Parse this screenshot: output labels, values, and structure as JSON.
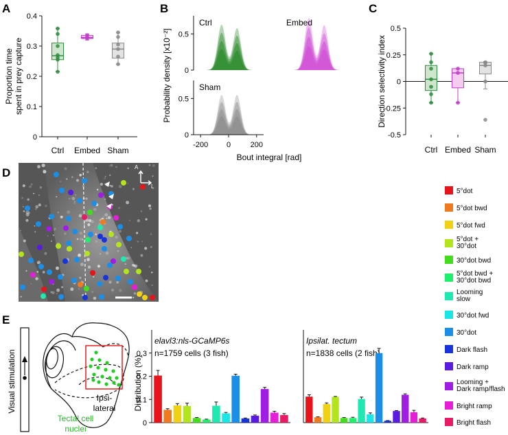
{
  "panels": {
    "A": "A",
    "B": "B",
    "C": "C",
    "D": "D",
    "E": "E"
  },
  "legend": [
    {
      "label": "5°dot",
      "color": "#e8141b"
    },
    {
      "label": "5°dot bwd",
      "color": "#f07a1e"
    },
    {
      "label": "5°dot fwd",
      "color": "#f1d113"
    },
    {
      "label": "5°dot +\n30°dot",
      "color": "#b3e51c"
    },
    {
      "label": "30°dot bwd",
      "color": "#44dd1e"
    },
    {
      "label": "5°dot bwd +\n30°dot bwd",
      "color": "#1ef06b"
    },
    {
      "label": "Looming\nslow",
      "color": "#1fe8b0"
    },
    {
      "label": "30°dot fwd",
      "color": "#1be6e6"
    },
    {
      "label": "30°dot",
      "color": "#1b8fe8"
    },
    {
      "label": "Dark flash",
      "color": "#1934d8"
    },
    {
      "label": "Dark ramp",
      "color": "#5a1ce0"
    },
    {
      "label": "Looming +\nDark ramp/flash",
      "color": "#a01de4"
    },
    {
      "label": "Bright ramp",
      "color": "#e51fd6"
    },
    {
      "label": "Bright flash",
      "color": "#e81b66"
    }
  ],
  "panel_d": {
    "scale_a": "A",
    "scale_l": "L"
  },
  "panel_e": {
    "stim_label": "Visual stimulation",
    "ipsi_label": "Ipsi-\nlateral",
    "tectal_label": "Tectal cell\nnuclei"
  },
  "chart_data": [
    {
      "id": "A",
      "type": "box",
      "categories": [
        "Ctrl",
        "Embed",
        "Sham"
      ],
      "ylabel": "Proportion time\nspent in prey capture",
      "ylim": [
        0,
        0.4
      ],
      "yticks": [
        "0",
        "0.1",
        "0.2",
        "0.3",
        "0.4"
      ],
      "colors": [
        "#2e8b3e",
        "#c03cc8",
        "#888888"
      ],
      "fills": [
        "#cde6cc",
        "#f3ccef",
        "#e3e3e3"
      ],
      "boxes": [
        {
          "min": 0.215,
          "q1": 0.255,
          "median": 0.268,
          "q3": 0.31,
          "max": 0.358,
          "points": [
            0.215,
            0.255,
            0.262,
            0.27,
            0.3,
            0.34,
            0.358
          ]
        },
        {
          "min": 0.32,
          "q1": 0.325,
          "median": 0.328,
          "q3": 0.335,
          "max": 0.34,
          "points": [
            0.325,
            0.33,
            0.336
          ]
        },
        {
          "min": 0.24,
          "q1": 0.26,
          "median": 0.29,
          "q3": 0.31,
          "max": 0.345,
          "points": [
            0.24,
            0.265,
            0.29,
            0.305,
            0.33,
            0.345
          ]
        }
      ]
    },
    {
      "id": "B",
      "type": "area",
      "ylabel": "Probability density [x10⁻²]",
      "xlabel": "Bout integral [rad]",
      "xlim": [
        -250,
        250
      ],
      "xticks": [
        "-200",
        "0",
        "200"
      ],
      "ylim": [
        0,
        0.75
      ],
      "yticks": [
        "0",
        "0.5"
      ],
      "subplots": [
        {
          "name": "Ctrl",
          "color": "#2b8a2b",
          "peak_left": 0.63,
          "peak_right": 0.58
        },
        {
          "name": "Embed",
          "color": "#d04fd6",
          "peak_left": 0.72,
          "peak_right": 0.62
        },
        {
          "name": "Sham",
          "color": "#8c8c8c",
          "peak_left": 0.55,
          "peak_right": 0.55
        }
      ]
    },
    {
      "id": "C",
      "type": "box",
      "categories": [
        "Ctrl",
        "Embed",
        "Sham"
      ],
      "ylabel": "Direction selectivity index",
      "ylim": [
        -0.5,
        0.5
      ],
      "yticks": [
        "0.5",
        "0.25",
        "0",
        "-0.25",
        "-0.5"
      ],
      "colors": [
        "#2e8b3e",
        "#c03cc8",
        "#888888"
      ],
      "fills": [
        "#cde6cc",
        "#f3ccef",
        "#e3e3e3"
      ],
      "boxes": [
        {
          "min": -0.2,
          "q1": -0.085,
          "median": 0.02,
          "q3": 0.15,
          "max": 0.26,
          "points": [
            -0.2,
            -0.12,
            -0.05,
            0.02,
            0.12,
            0.18,
            0.26
          ]
        },
        {
          "min": -0.2,
          "q1": -0.06,
          "median": 0.08,
          "q3": 0.12,
          "max": 0.12,
          "points": [
            -0.2,
            0.08,
            0.12
          ]
        },
        {
          "min": -0.07,
          "q1": 0.07,
          "median": 0.15,
          "q3": 0.18,
          "max": 0.185,
          "points": [
            -0.36,
            0.0,
            0.15,
            0.175,
            0.18
          ]
        }
      ]
    },
    {
      "id": "E1",
      "type": "bar",
      "title": "elavl3:nls-GCaMP6s",
      "subtitle": "n=1759 cells (3 fish)",
      "ylabel": "Distribution (%)",
      "ylim": [
        0,
        0.4
      ],
      "yticks": [
        "0",
        "0.1",
        "0.2",
        "0.3"
      ],
      "values": [
        0.203,
        0.055,
        0.074,
        0.072,
        0.02,
        0.013,
        0.073,
        0.04,
        0.202,
        0.018,
        0.03,
        0.145,
        0.043,
        0.033
      ],
      "errors": [
        0.022,
        0.005,
        0.008,
        0.012,
        0.002,
        0.002,
        0.016,
        0.004,
        0.007,
        0.002,
        0.003,
        0.007,
        0.006,
        0.006
      ]
    },
    {
      "id": "E2",
      "type": "bar",
      "title": "Ipsilat. tectum",
      "subtitle": "n=1838 cells (2 fish)",
      "ylim": [
        0,
        0.4
      ],
      "yticks": [
        "0",
        "0.1",
        "0.2",
        "0.3"
      ],
      "values": [
        0.112,
        0.023,
        0.08,
        0.111,
        0.02,
        0.02,
        0.102,
        0.036,
        0.3,
        0.008,
        0.05,
        0.12,
        0.045,
        0.018
      ],
      "errors": [
        0.008,
        0.002,
        0.005,
        0.002,
        0.002,
        0.003,
        0.008,
        0.006,
        0.02,
        0.001,
        0.002,
        0.004,
        0.008,
        0.002
      ]
    }
  ]
}
